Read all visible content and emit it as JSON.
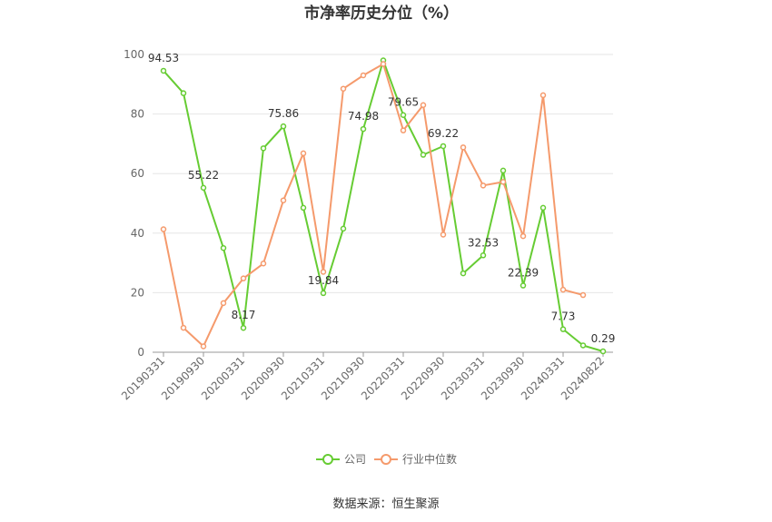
{
  "title": "市净率历史分位（%）",
  "source": "数据来源：恒生聚源",
  "colors": {
    "company": "#66cc33",
    "industry": "#f59a6c",
    "grid": "#e6e6e6",
    "axis": "#999999"
  },
  "chart_data": {
    "type": "line",
    "title": "市净率历史分位（%）",
    "ylim": [
      0,
      100
    ],
    "y_ticks": [
      0,
      20,
      40,
      60,
      80,
      100
    ],
    "grid": true,
    "legend_position": "bottom",
    "x_tick_labels": [
      "20190331",
      "20190930",
      "20200331",
      "20200930",
      "20210331",
      "20210930",
      "20220331",
      "20220930",
      "20230331",
      "20230930",
      "20240331",
      "20240822"
    ],
    "x": [
      "20190331",
      "20190630",
      "20190930",
      "20191231",
      "20200331",
      "20200630",
      "20200930",
      "20201231",
      "20210331",
      "20210630",
      "20210930",
      "20211231",
      "20220331",
      "20220630",
      "20220930",
      "20221231",
      "20230331",
      "20230630",
      "20230930",
      "20231231",
      "20240331",
      "20240630",
      "20240822"
    ],
    "series": [
      {
        "name": "公司",
        "values": [
          94.53,
          87.0,
          55.22,
          35.0,
          8.17,
          68.5,
          75.86,
          48.5,
          19.84,
          41.5,
          74.98,
          98.0,
          79.65,
          66.3,
          69.22,
          26.5,
          32.53,
          61.0,
          22.39,
          48.5,
          7.73,
          2.3,
          0.29
        ]
      },
      {
        "name": "行业中位数",
        "values": [
          41.3,
          8.2,
          2.0,
          16.5,
          24.8,
          29.8,
          51.0,
          66.8,
          27.0,
          88.5,
          93.0,
          96.8,
          74.5,
          83.0,
          39.5,
          68.8,
          56.0,
          57.2,
          39.0,
          86.3,
          21.0,
          19.2,
          null
        ]
      }
    ],
    "data_labels": [
      {
        "series": 0,
        "index": 0,
        "text": "94.53"
      },
      {
        "series": 0,
        "index": 2,
        "text": "55.22"
      },
      {
        "series": 0,
        "index": 4,
        "text": "8.17"
      },
      {
        "series": 0,
        "index": 6,
        "text": "75.86"
      },
      {
        "series": 0,
        "index": 8,
        "text": "19.84"
      },
      {
        "series": 0,
        "index": 10,
        "text": "74.98"
      },
      {
        "series": 0,
        "index": 12,
        "text": "79.65"
      },
      {
        "series": 0,
        "index": 14,
        "text": "69.22"
      },
      {
        "series": 0,
        "index": 16,
        "text": "32.53"
      },
      {
        "series": 0,
        "index": 18,
        "text": "22.39"
      },
      {
        "series": 0,
        "index": 20,
        "text": "7.73"
      },
      {
        "series": 0,
        "index": 22,
        "text": "0.29"
      }
    ]
  }
}
